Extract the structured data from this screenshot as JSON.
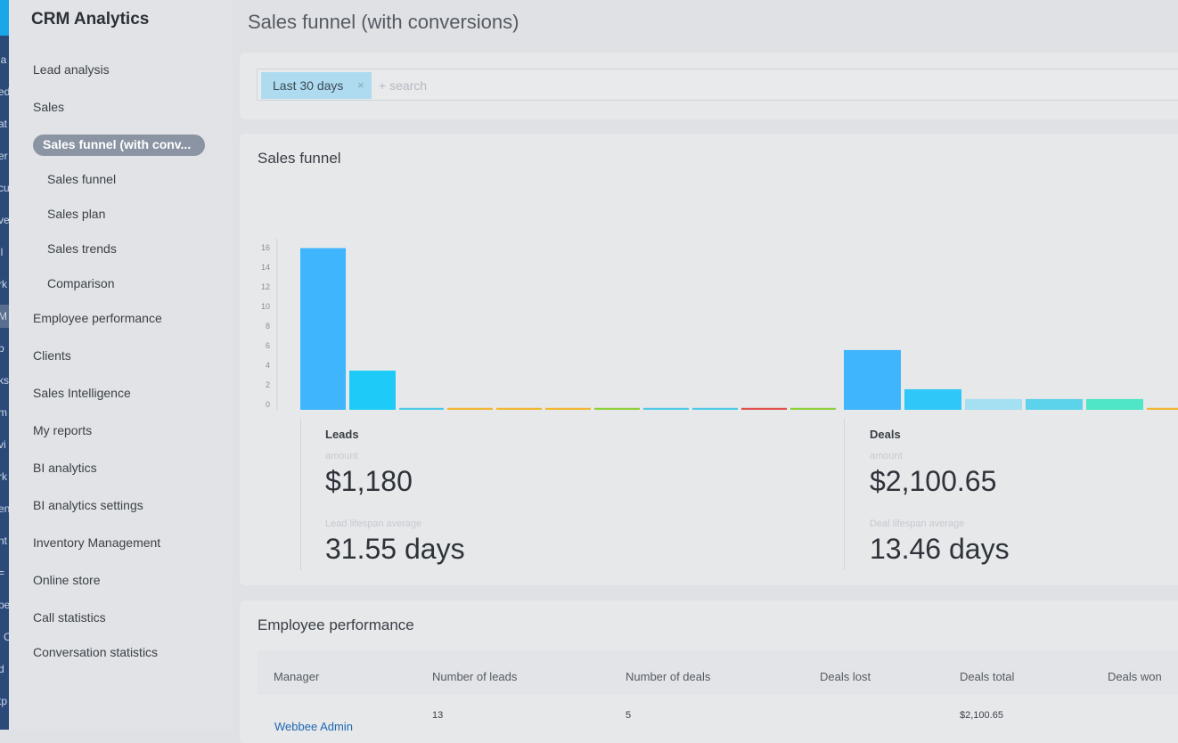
{
  "app_title": "CRM Analytics",
  "page_title": "Sales funnel (with conversions)",
  "strip_fragments": [
    "la",
    "ed",
    "at",
    "er",
    "cu",
    "ve",
    "il",
    "rk",
    "M",
    "b",
    "ks",
    "m",
    "vi",
    "rk",
    "en",
    "nt",
    "=",
    "pe",
    "l C",
    "d",
    "tp"
  ],
  "sidebar": {
    "items": [
      {
        "label": "Lead analysis"
      },
      {
        "label": "Sales"
      },
      {
        "label": "Sales funnel (with conv..."
      },
      {
        "label": "Sales funnel"
      },
      {
        "label": "Sales plan"
      },
      {
        "label": "Sales trends"
      },
      {
        "label": "Comparison"
      },
      {
        "label": "Employee performance"
      },
      {
        "label": "Clients"
      },
      {
        "label": "Sales Intelligence"
      },
      {
        "label": "My reports"
      },
      {
        "label": "BI analytics"
      },
      {
        "label": "BI analytics settings"
      },
      {
        "label": "Inventory Management"
      },
      {
        "label": "Online store"
      },
      {
        "label": "Call statistics"
      },
      {
        "label": "Conversation statistics"
      }
    ]
  },
  "filter": {
    "tag_label": "Last 30 days",
    "tag_close": "×",
    "search_placeholder": "+ search"
  },
  "funnel": {
    "title": "Sales funnel",
    "leads": {
      "label": "Leads",
      "amount_caption": "amount",
      "amount": "$1,180",
      "lifespan_caption": "Lead lifespan average",
      "lifespan": "31.55 days"
    },
    "deals": {
      "label": "Deals",
      "amount_caption": "amount",
      "amount": "$2,100.65",
      "lifespan_caption": "Deal lifespan average",
      "lifespan": "13.46 days"
    }
  },
  "chart_data": {
    "type": "bar",
    "ylim": [
      0,
      17
    ],
    "yticks": [
      0,
      2,
      4,
      6,
      8,
      10,
      12,
      14,
      16
    ],
    "groups": [
      {
        "name": "Leads",
        "values": [
          16.5,
          4,
          0.2,
          0.2,
          0.2,
          0.2,
          0.2,
          0.2,
          0.2,
          0.2,
          0.2
        ],
        "colors": [
          "#3fb5fd",
          "#1ecbf8",
          "#4ec9e8",
          "#f2b632",
          "#f2b632",
          "#f2b632",
          "#8ed03b",
          "#4ec9e8",
          "#4ec9e8",
          "#e0534e",
          "#8ed03b"
        ]
      },
      {
        "name": "Deals",
        "values": [
          6.1,
          2.1,
          1.1,
          1.1,
          1.1,
          0.2
        ],
        "colors": [
          "#3fb5fd",
          "#2fc6f8",
          "#a3e0f2",
          "#5cd3ea",
          "#4ee6c7",
          "#f2b632"
        ]
      }
    ]
  },
  "employee": {
    "title": "Employee performance",
    "columns": [
      "Manager",
      "Number of leads",
      "Number of deals",
      "Deals lost",
      "Deals total",
      "Deals won"
    ],
    "rows": [
      {
        "manager": "Webbee Admin",
        "leads": "13",
        "deals": "5",
        "lost": "",
        "total": "$2,100.65",
        "won": ""
      }
    ]
  }
}
